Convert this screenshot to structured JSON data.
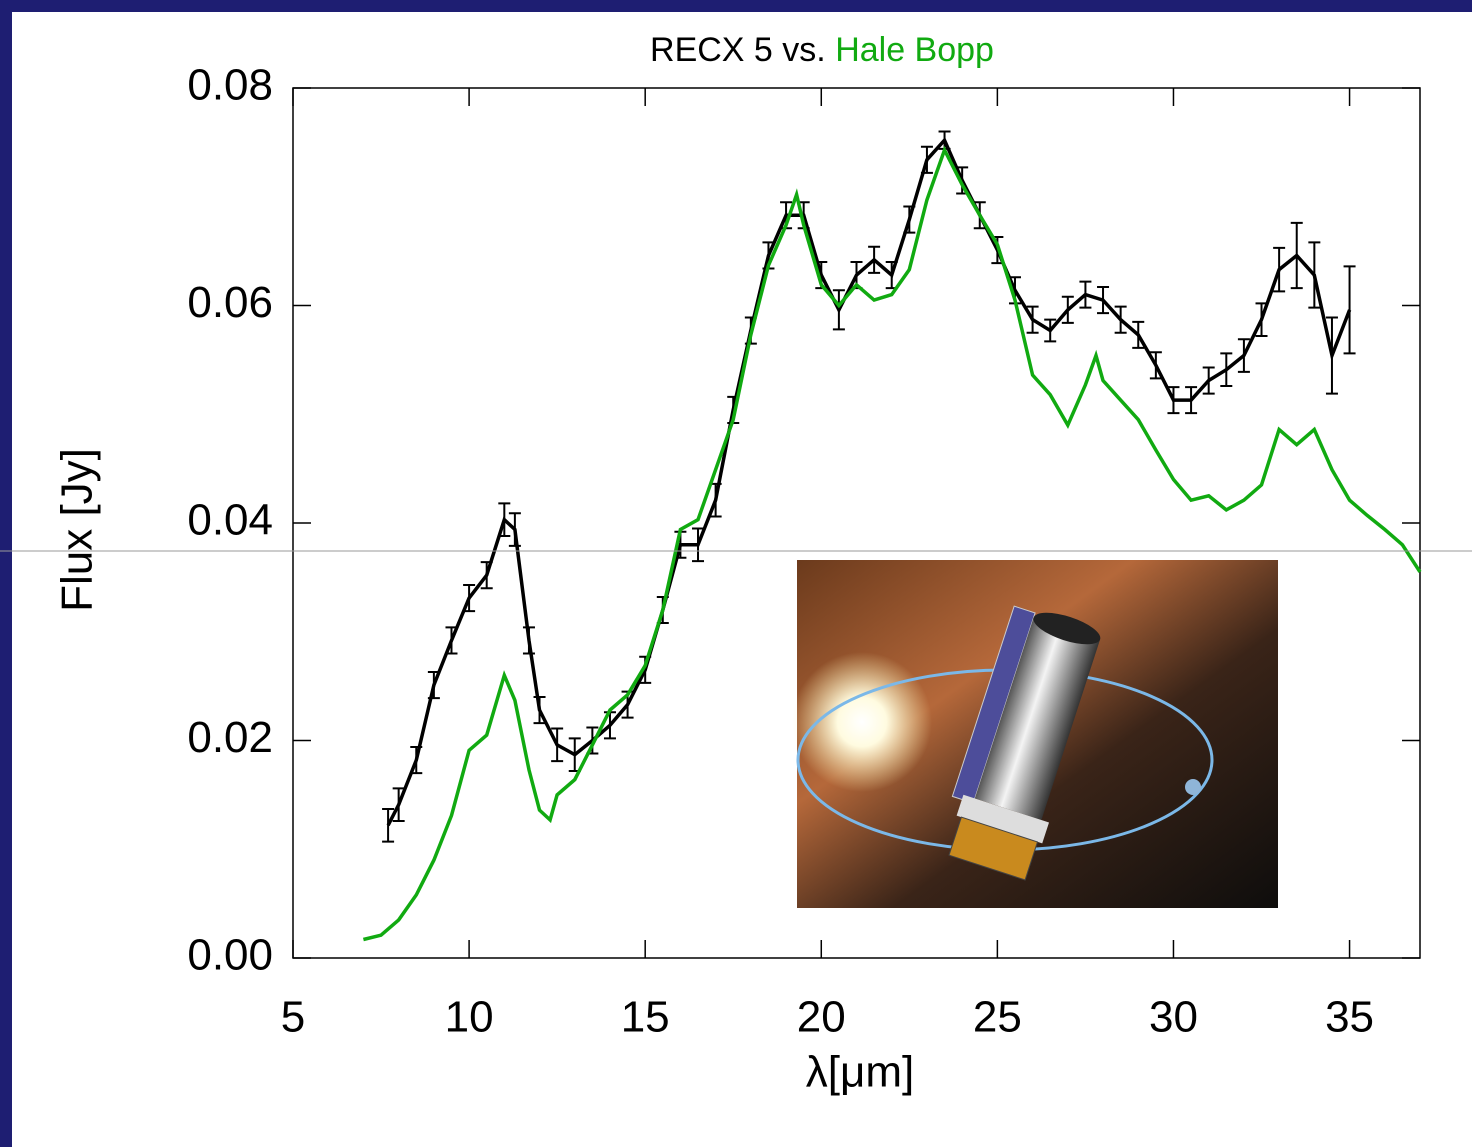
{
  "chart_data": {
    "type": "line",
    "title": "RECX 5 vs.",
    "x_label": "λ[μm]",
    "y_label": "Flux [Jy]",
    "xlim": [
      5,
      37
    ],
    "ylim": [
      0,
      0.08
    ],
    "xticks": [
      5,
      10,
      15,
      20,
      25,
      30,
      35
    ],
    "yticks": [
      {
        "value": 0,
        "label": "0.00"
      },
      {
        "value": 0.02,
        "label": "0.02"
      },
      {
        "value": 0.04,
        "label": "0.04"
      },
      {
        "value": 0.06,
        "label": "0.06"
      },
      {
        "value": 0.08,
        "label": "0.08"
      }
    ],
    "series": [
      {
        "color": "#000000",
        "x": [
          7.7,
          8.0,
          8.5,
          9.0,
          9.5,
          10.0,
          10.5,
          11.0,
          11.3,
          11.7,
          12.0,
          12.5,
          13.0,
          13.5,
          14.0,
          14.5,
          15.0,
          15.5,
          16.0,
          16.5,
          17.0,
          17.5,
          18.0,
          18.5,
          19.0,
          19.5,
          20.0,
          20.5,
          21.0,
          21.5,
          22.0,
          22.5,
          23.0,
          23.5,
          24.0,
          24.5,
          25.0,
          25.5,
          26.0,
          26.5,
          27.0,
          27.5,
          28.0,
          28.5,
          29.0,
          29.5,
          30.0,
          30.5,
          31.0,
          31.5,
          32.0,
          32.5,
          33.0,
          33.5,
          34.0,
          34.5,
          35.0
        ],
        "values": [
          0.0122,
          0.0141,
          0.0182,
          0.0251,
          0.0292,
          0.0331,
          0.0352,
          0.0403,
          0.0394,
          0.0292,
          0.0228,
          0.0196,
          0.0187,
          0.02,
          0.0214,
          0.0233,
          0.0265,
          0.032,
          0.038,
          0.038,
          0.0421,
          0.0504,
          0.0577,
          0.0646,
          0.0683,
          0.0683,
          0.0628,
          0.0596,
          0.0628,
          0.0642,
          0.0628,
          0.0679,
          0.0734,
          0.0752,
          0.0715,
          0.0683,
          0.0651,
          0.0614,
          0.0587,
          0.0577,
          0.0596,
          0.061,
          0.0605,
          0.0587,
          0.0573,
          0.0545,
          0.0513,
          0.0513,
          0.0531,
          0.0541,
          0.0554,
          0.0587,
          0.0633,
          0.0646,
          0.0628,
          0.0554,
          0.0596
        ],
        "errors": [
          0.0015,
          0.0015,
          0.0012,
          0.0012,
          0.0012,
          0.0012,
          0.0012,
          0.0015,
          0.0015,
          0.0012,
          0.0012,
          0.0015,
          0.0015,
          0.0012,
          0.0012,
          0.0012,
          0.0012,
          0.0012,
          0.0012,
          0.0015,
          0.0015,
          0.0012,
          0.0012,
          0.0012,
          0.0012,
          0.0012,
          0.0012,
          0.0018,
          0.0012,
          0.0012,
          0.0012,
          0.0012,
          0.0012,
          0.0008,
          0.0012,
          0.0012,
          0.0012,
          0.0012,
          0.0012,
          0.001,
          0.0012,
          0.0012,
          0.0012,
          0.0012,
          0.0012,
          0.0012,
          0.0012,
          0.0012,
          0.0012,
          0.0015,
          0.0015,
          0.0015,
          0.002,
          0.003,
          0.003,
          0.0035,
          0.004
        ]
      },
      {
        "name": "Hale Bopp",
        "color": "#11aa11",
        "x": [
          7.0,
          7.5,
          8.0,
          8.5,
          9.0,
          9.5,
          10.0,
          10.5,
          11.0,
          11.3,
          11.7,
          12.0,
          12.3,
          12.5,
          13.0,
          13.5,
          14.0,
          14.5,
          15.0,
          15.5,
          16.0,
          16.5,
          17.0,
          17.5,
          18.0,
          18.5,
          19.0,
          19.3,
          19.5,
          20.0,
          20.5,
          21.0,
          21.5,
          22.0,
          22.5,
          23.0,
          23.5,
          24.0,
          24.5,
          25.0,
          25.5,
          26.0,
          26.5,
          27.0,
          27.5,
          27.8,
          28.0,
          28.5,
          29.0,
          29.5,
          30.0,
          30.5,
          31.0,
          31.5,
          32.0,
          32.5,
          33.0,
          33.5,
          34.0,
          34.5,
          35.0,
          35.5,
          36.0,
          36.5,
          37.0
        ],
        "values": [
          0.0017,
          0.0021,
          0.0035,
          0.0058,
          0.009,
          0.0131,
          0.0191,
          0.0205,
          0.026,
          0.0237,
          0.0173,
          0.0136,
          0.0127,
          0.015,
          0.0164,
          0.0196,
          0.0228,
          0.0242,
          0.0269,
          0.032,
          0.0394,
          0.0403,
          0.0449,
          0.0495,
          0.0573,
          0.0637,
          0.0674,
          0.0702,
          0.0674,
          0.0619,
          0.06,
          0.0619,
          0.0605,
          0.061,
          0.0633,
          0.0697,
          0.0743,
          0.0711,
          0.0683,
          0.0656,
          0.0605,
          0.0536,
          0.0518,
          0.049,
          0.0527,
          0.0554,
          0.0531,
          0.0513,
          0.0495,
          0.0467,
          0.044,
          0.0421,
          0.0425,
          0.0412,
          0.0421,
          0.0435,
          0.0486,
          0.0472,
          0.0486,
          0.0449,
          0.0421,
          0.0407,
          0.0394,
          0.038,
          0.0355
        ]
      }
    ]
  }
}
